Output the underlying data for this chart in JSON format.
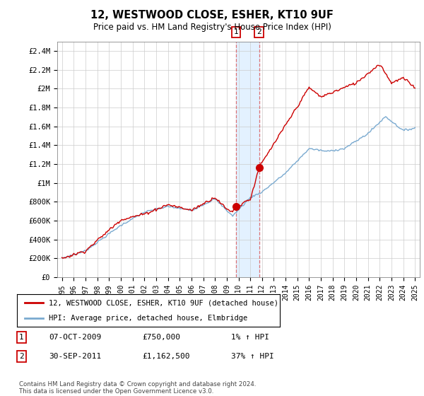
{
  "title": "12, WESTWOOD CLOSE, ESHER, KT10 9UF",
  "subtitle": "Price paid vs. HM Land Registry's House Price Index (HPI)",
  "legend_line1": "12, WESTWOOD CLOSE, ESHER, KT10 9UF (detached house)",
  "legend_line2": "HPI: Average price, detached house, Elmbridge",
  "transaction1_date": "07-OCT-2009",
  "transaction1_price": "£750,000",
  "transaction1_hpi": "1% ↑ HPI",
  "transaction2_date": "30-SEP-2011",
  "transaction2_price": "£1,162,500",
  "transaction2_hpi": "37% ↑ HPI",
  "copyright": "Contains HM Land Registry data © Crown copyright and database right 2024.\nThis data is licensed under the Open Government Licence v3.0.",
  "hpi_color": "#7aaad0",
  "property_color": "#cc0000",
  "marker_color": "#cc0000",
  "shading_color": "#ddeeff",
  "ylim": [
    0,
    2500000
  ],
  "yticks": [
    0,
    200000,
    400000,
    600000,
    800000,
    1000000,
    1200000,
    1400000,
    1600000,
    1800000,
    2000000,
    2200000,
    2400000
  ],
  "ytick_labels": [
    "£0",
    "£200K",
    "£400K",
    "£600K",
    "£800K",
    "£1M",
    "£1.2M",
    "£1.4M",
    "£1.6M",
    "£1.8M",
    "£2M",
    "£2.2M",
    "£2.4M"
  ],
  "transaction1_x": 2009.77,
  "transaction2_x": 2011.75,
  "transaction1_y": 750000,
  "transaction2_y": 1162500,
  "xmin": 1995,
  "xmax": 2025
}
